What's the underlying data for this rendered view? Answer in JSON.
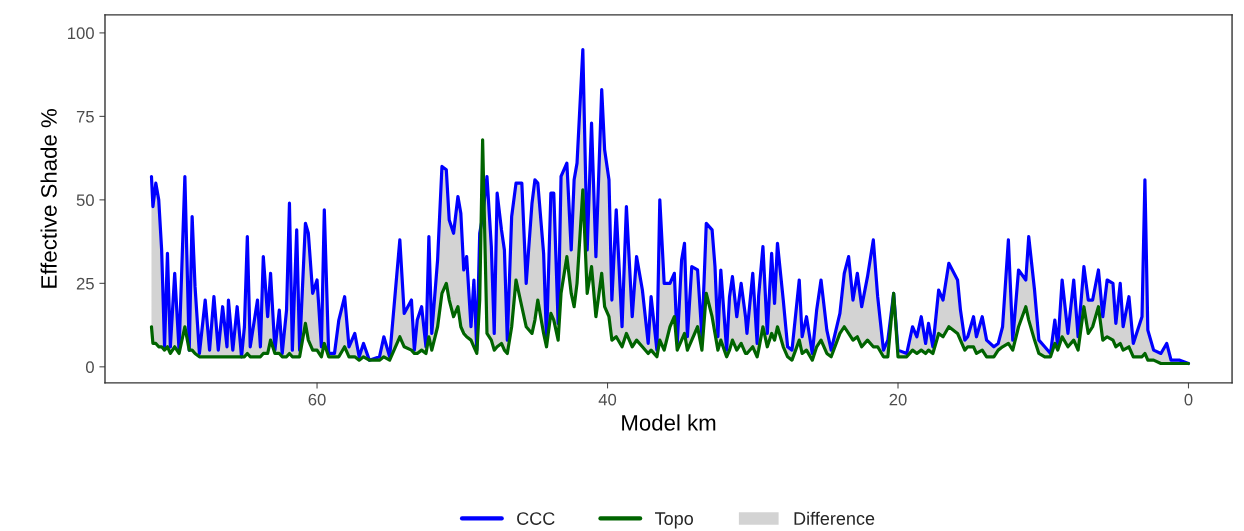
{
  "chart_data": {
    "type": "line",
    "xlabel": "Model km",
    "ylabel": "Effective Shade %",
    "xlim": [
      74.6,
      -3.0
    ],
    "xticks": [
      60,
      40,
      20,
      0
    ],
    "ylim": [
      -4.8,
      105.4
    ],
    "yticks": [
      0,
      25,
      50,
      75,
      100
    ],
    "grid": false,
    "legend": "bottom",
    "line_style": "solid",
    "marker": "none",
    "x": [
      71.4,
      71.3,
      71.1,
      70.9,
      70.7,
      70.5,
      70.3,
      70.1,
      69.8,
      69.5,
      69.1,
      68.8,
      68.6,
      68.4,
      68.1,
      67.7,
      67.4,
      67.1,
      66.8,
      66.5,
      66.2,
      66.1,
      65.8,
      65.5,
      65.2,
      65.0,
      64.8,
      64.6,
      64.1,
      63.9,
      63.7,
      63.4,
      63.2,
      62.9,
      62.6,
      62.4,
      62.1,
      61.9,
      61.7,
      61.4,
      61.2,
      60.8,
      60.6,
      60.3,
      60.0,
      59.7,
      59.5,
      59.2,
      58.8,
      58.5,
      58.1,
      57.8,
      57.4,
      57.1,
      56.8,
      56.4,
      55.7,
      55.4,
      55.0,
      54.3,
      54.0,
      53.5,
      53.3,
      53.1,
      52.8,
      52.5,
      52.3,
      52.1,
      51.7,
      51.4,
      51.1,
      50.9,
      50.6,
      50.3,
      50.1,
      49.9,
      49.7,
      49.4,
      49.2,
      49.0,
      48.8,
      48.6,
      48.3,
      48.0,
      47.8,
      47.6,
      47.3,
      47.1,
      46.9,
      46.6,
      46.3,
      45.9,
      45.6,
      45.2,
      45.0,
      44.8,
      44.4,
      44.2,
      43.9,
      43.7,
      43.4,
      43.2,
      42.8,
      42.5,
      42.3,
      42.1,
      41.7,
      41.4,
      41.1,
      40.8,
      40.4,
      40.2,
      39.9,
      39.7,
      39.4,
      39.0,
      38.7,
      38.3,
      38.0,
      37.6,
      37.2,
      37.0,
      36.6,
      36.4,
      36.1,
      35.7,
      35.4,
      35.2,
      34.9,
      34.7,
      34.5,
      34.2,
      33.8,
      33.5,
      33.2,
      32.8,
      32.6,
      32.4,
      32.2,
      31.8,
      31.6,
      31.4,
      31.1,
      30.8,
      30.5,
      30.4,
      30.0,
      29.7,
      29.6,
      29.3,
      29.0,
      28.7,
      28.5,
      28.3,
      27.9,
      27.6,
      27.3,
      26.8,
      26.6,
      26.3,
      25.9,
      25.6,
      25.3,
      24.9,
      24.6,
      24.0,
      23.7,
      23.4,
      23.1,
      22.8,
      22.5,
      22.1,
      21.7,
      21.4,
      21.0,
      20.7,
      20.3,
      20.0,
      19.4,
      19.0,
      18.7,
      18.4,
      18.1,
      17.9,
      17.6,
      17.2,
      16.9,
      16.5,
      15.9,
      15.7,
      15.4,
      15.2,
      14.8,
      14.6,
      14.2,
      13.9,
      13.4,
      13.1,
      12.8,
      12.4,
      12.1,
      11.7,
      11.2,
      11.0,
      10.6,
      10.3,
      9.9,
      9.5,
      9.2,
      9.0,
      8.7,
      8.3,
      7.9,
      7.6,
      7.2,
      6.9,
      6.6,
      6.2,
      5.9,
      5.6,
      5.2,
      5.0,
      4.7,
      4.5,
      4.1,
      3.8,
      3.2,
      3.0,
      2.8,
      2.4,
      1.9,
      1.5,
      1.2,
      0.9,
      0.6,
      0
    ],
    "series": [
      {
        "name": "CCC",
        "color": "#0000ff",
        "values": [
          57,
          48,
          55,
          50,
          35,
          6,
          34,
          6,
          28,
          5,
          57,
          5,
          45,
          24,
          4,
          20,
          5,
          21,
          5,
          18,
          6,
          20,
          5,
          18,
          3,
          12,
          39,
          6,
          20,
          6,
          33,
          15,
          28,
          5,
          17,
          4,
          17,
          49,
          5,
          41,
          5,
          43,
          40,
          22,
          26,
          6,
          47,
          4,
          4,
          14,
          21,
          6,
          10,
          3,
          7,
          2,
          3,
          9,
          3,
          38,
          16,
          20,
          5,
          14,
          18,
          6,
          39,
          10,
          32,
          60,
          59,
          44,
          40,
          51,
          46,
          29,
          33,
          12,
          26,
          5,
          40,
          45,
          57,
          36,
          10,
          52,
          41,
          35,
          8,
          45,
          55,
          55,
          25,
          49,
          56,
          55,
          34,
          8,
          52,
          52,
          13,
          57,
          61,
          35,
          56,
          61,
          95,
          35,
          73,
          33,
          83,
          65,
          56,
          20,
          47,
          12,
          48,
          15,
          33,
          23,
          7,
          21,
          5,
          50,
          25,
          25,
          28,
          7,
          32,
          37,
          9,
          30,
          29,
          9,
          43,
          41,
          30,
          9,
          29,
          5,
          21,
          27,
          15,
          25,
          15,
          10,
          28,
          7,
          21,
          36,
          10,
          34,
          19,
          37,
          20,
          6,
          5,
          26,
          9,
          15,
          4,
          17,
          26,
          11,
          5,
          16,
          28,
          33,
          20,
          28,
          18,
          27,
          38,
          21,
          5,
          8,
          22,
          5,
          4,
          12,
          9,
          15,
          7,
          13,
          6,
          23,
          20,
          31,
          26,
          17,
          8,
          9,
          15,
          9,
          15,
          8,
          6,
          7,
          12,
          38,
          8,
          29,
          26,
          39,
          23,
          8,
          6,
          4,
          14,
          6,
          26,
          10,
          26,
          9,
          30,
          20,
          20,
          29,
          15,
          26,
          25,
          13,
          25,
          12,
          21,
          7,
          15,
          56,
          11,
          5,
          4,
          7,
          2,
          2,
          2,
          1
        ]
      },
      {
        "name": "Topo",
        "color": "#006400",
        "values": [
          12,
          7,
          7,
          6,
          6,
          5,
          6,
          4,
          6,
          4,
          12,
          5,
          5,
          4,
          3,
          3,
          3,
          3,
          3,
          3,
          3,
          3,
          3,
          3,
          3,
          3,
          4,
          3,
          3,
          3,
          4,
          4,
          8,
          4,
          4,
          3,
          3,
          4,
          3,
          3,
          3,
          13,
          8,
          5,
          5,
          3,
          7,
          3,
          3,
          3,
          6,
          3,
          3,
          2,
          3,
          2,
          2,
          3,
          2,
          9,
          6,
          5,
          4,
          4,
          5,
          4,
          9,
          5,
          12,
          22,
          25,
          20,
          15,
          18,
          12,
          10,
          9,
          8,
          6,
          4,
          20,
          68,
          10,
          8,
          5,
          6,
          7,
          5,
          4,
          12,
          26,
          18,
          12,
          10,
          14,
          20,
          10,
          6,
          16,
          14,
          8,
          22,
          33,
          22,
          18,
          25,
          53,
          22,
          30,
          15,
          28,
          18,
          15,
          8,
          9,
          6,
          10,
          6,
          8,
          6,
          4,
          5,
          3,
          8,
          5,
          12,
          15,
          5,
          8,
          10,
          5,
          8,
          12,
          5,
          22,
          15,
          10,
          5,
          8,
          3,
          5,
          8,
          5,
          7,
          4,
          4,
          6,
          3,
          5,
          12,
          6,
          10,
          8,
          12,
          6,
          3,
          2,
          8,
          4,
          5,
          2,
          6,
          8,
          4,
          3,
          10,
          12,
          10,
          8,
          9,
          6,
          8,
          6,
          6,
          3,
          3,
          22,
          3,
          3,
          5,
          4,
          5,
          4,
          5,
          4,
          10,
          9,
          12,
          10,
          8,
          5,
          6,
          6,
          4,
          5,
          3,
          3,
          5,
          6,
          7,
          5,
          12,
          18,
          14,
          8,
          4,
          3,
          3,
          7,
          5,
          9,
          6,
          8,
          5,
          18,
          10,
          12,
          18,
          8,
          9,
          8,
          6,
          7,
          5,
          6,
          3,
          3,
          4,
          2,
          2,
          1,
          1,
          1,
          1,
          1,
          1
        ]
      },
      {
        "name": "Difference",
        "color": "#d3d3d3",
        "values": [
          null,
          null,
          null,
          null,
          null,
          null,
          null,
          null,
          null,
          null,
          null,
          null,
          null,
          null,
          null,
          null,
          null,
          null,
          null,
          null,
          null,
          null,
          null,
          null,
          null,
          null,
          null,
          null,
          null,
          null,
          null,
          null,
          null,
          null,
          null,
          null,
          null,
          null,
          null,
          null,
          null,
          null,
          null,
          null,
          null,
          null,
          null,
          null,
          null,
          null,
          null,
          null,
          null,
          null,
          null,
          null,
          null,
          null,
          null,
          null,
          null,
          null,
          null,
          null,
          null,
          null,
          null,
          null,
          null,
          null,
          null,
          null,
          null,
          null,
          null,
          null,
          null,
          null,
          null,
          null,
          null,
          null,
          null,
          null,
          null,
          null,
          null,
          null,
          null,
          null,
          null,
          null,
          null,
          null,
          null,
          null,
          null,
          null,
          null,
          null,
          null,
          null,
          null,
          null,
          null,
          null,
          null,
          null,
          null,
          null,
          null,
          null,
          null,
          null,
          null,
          null,
          null,
          null,
          null,
          null,
          null,
          null,
          null,
          null,
          null,
          null,
          null,
          null,
          null,
          null,
          null,
          null,
          null,
          null,
          null,
          null,
          null,
          null,
          null,
          null,
          null,
          null,
          null,
          null,
          null,
          null,
          null,
          null,
          null,
          null,
          null,
          null,
          null,
          null,
          null,
          null,
          null,
          null,
          null,
          null,
          null,
          null,
          null,
          null,
          null,
          null,
          null,
          null,
          null,
          null,
          null,
          null,
          null,
          null,
          null,
          null,
          null,
          null,
          null,
          null,
          null,
          null,
          null,
          null,
          null,
          null,
          null,
          null,
          null,
          null,
          null,
          null,
          null,
          null,
          null,
          null,
          null,
          null,
          null,
          null,
          null,
          null,
          null,
          null,
          null,
          null,
          null,
          null,
          null,
          null,
          null,
          null,
          null,
          null,
          null,
          null,
          null,
          null,
          null,
          null,
          null,
          null,
          null,
          null,
          null,
          null,
          null,
          null,
          null,
          null,
          null,
          null,
          null,
          null,
          null,
          null
        ],
        "lower": [
          12,
          7,
          7,
          6,
          6,
          5,
          6,
          4,
          6,
          4,
          12,
          5,
          5,
          4,
          3,
          3,
          3,
          3,
          3,
          3,
          3,
          3,
          3,
          3,
          3,
          3,
          4,
          3,
          3,
          3,
          4,
          4,
          8,
          4,
          4,
          3,
          3,
          4,
          3,
          3,
          3,
          13,
          8,
          5,
          5,
          3,
          7,
          3,
          3,
          3,
          6,
          3,
          3,
          2,
          3,
          2,
          2,
          3,
          2,
          9,
          6,
          5,
          4,
          4,
          5,
          4,
          9,
          5,
          12,
          22,
          25,
          20,
          15,
          18,
          12,
          10,
          9,
          8,
          6,
          4,
          20,
          68,
          10,
          8,
          5,
          6,
          7,
          5,
          4,
          12,
          26,
          18,
          12,
          10,
          14,
          20,
          10,
          6,
          16,
          14,
          8,
          22,
          33,
          22,
          18,
          25,
          53,
          22,
          30,
          15,
          28,
          18,
          15,
          8,
          9,
          6,
          10,
          6,
          8,
          6,
          4,
          5,
          3,
          8,
          5,
          12,
          15,
          5,
          8,
          10,
          5,
          8,
          12,
          5,
          22,
          15,
          10,
          5,
          8,
          3,
          5,
          8,
          5,
          7,
          4,
          4,
          6,
          3,
          5,
          12,
          6,
          10,
          8,
          12,
          6,
          3,
          2,
          8,
          4,
          5,
          2,
          6,
          8,
          4,
          3,
          10,
          12,
          10,
          8,
          9,
          6,
          8,
          6,
          6,
          3,
          3,
          22,
          3,
          3,
          5,
          4,
          5,
          4,
          5,
          4,
          10,
          9,
          12,
          10,
          8,
          5,
          6,
          6,
          4,
          5,
          3,
          3,
          5,
          6,
          7,
          5,
          12,
          18,
          14,
          8,
          4,
          3,
          3,
          7,
          5,
          9,
          6,
          8,
          5,
          18,
          10,
          12,
          18,
          8,
          9,
          8,
          6,
          7,
          5,
          6,
          3,
          3,
          4,
          2,
          2,
          1,
          1,
          1,
          1,
          1,
          1
        ],
        "upper": [
          57,
          48,
          55,
          50,
          35,
          6,
          34,
          6,
          28,
          5,
          57,
          5,
          45,
          24,
          4,
          20,
          5,
          21,
          5,
          18,
          6,
          20,
          5,
          18,
          3,
          12,
          39,
          6,
          20,
          6,
          33,
          15,
          28,
          5,
          17,
          4,
          17,
          49,
          5,
          41,
          5,
          43,
          40,
          22,
          26,
          6,
          47,
          4,
          4,
          14,
          21,
          6,
          10,
          3,
          7,
          2,
          3,
          9,
          3,
          38,
          16,
          20,
          5,
          14,
          18,
          6,
          39,
          10,
          32,
          60,
          59,
          44,
          40,
          51,
          46,
          29,
          33,
          12,
          26,
          5,
          40,
          45,
          57,
          36,
          10,
          52,
          41,
          35,
          8,
          45,
          55,
          55,
          25,
          49,
          56,
          55,
          34,
          8,
          52,
          52,
          13,
          57,
          61,
          35,
          56,
          61,
          95,
          35,
          73,
          33,
          83,
          65,
          56,
          20,
          47,
          12,
          48,
          15,
          33,
          23,
          7,
          21,
          5,
          50,
          25,
          25,
          28,
          7,
          32,
          37,
          9,
          30,
          29,
          9,
          43,
          41,
          30,
          9,
          29,
          5,
          21,
          27,
          15,
          25,
          15,
          10,
          28,
          7,
          21,
          36,
          10,
          34,
          19,
          37,
          20,
          6,
          5,
          26,
          9,
          15,
          4,
          17,
          26,
          11,
          5,
          16,
          28,
          33,
          20,
          28,
          18,
          27,
          38,
          21,
          5,
          8,
          22,
          5,
          4,
          12,
          9,
          15,
          7,
          13,
          6,
          23,
          20,
          31,
          26,
          17,
          8,
          9,
          15,
          9,
          15,
          8,
          6,
          7,
          12,
          38,
          8,
          29,
          26,
          39,
          23,
          8,
          6,
          4,
          14,
          6,
          26,
          10,
          26,
          9,
          30,
          20,
          20,
          29,
          15,
          26,
          25,
          13,
          25,
          12,
          21,
          7,
          15,
          56,
          11,
          5,
          4,
          7,
          2,
          2,
          2,
          1
        ]
      }
    ]
  }
}
